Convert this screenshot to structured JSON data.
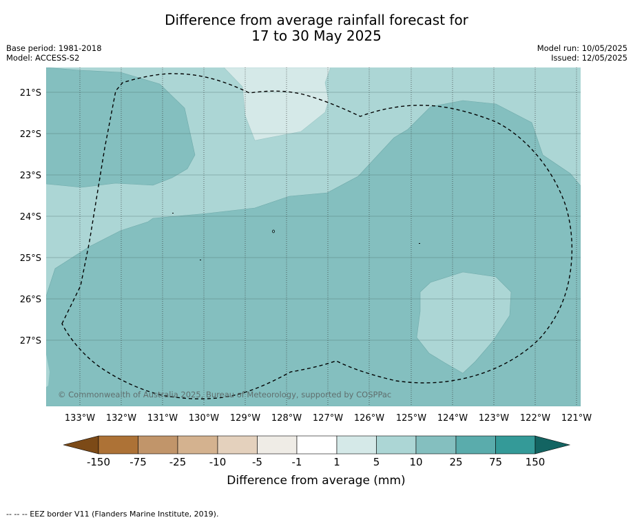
{
  "title": {
    "line1": "Difference from average rainfall forecast for",
    "line2": "17 to 30 May 2025"
  },
  "info": {
    "base_period": "Base period: 1981-2018",
    "model": "Model: ACCESS-S2",
    "model_run": "Model run: 10/05/2025",
    "issued": "Issued: 12/05/2025"
  },
  "map": {
    "lat_labels": [
      "21°S",
      "22°S",
      "23°S",
      "24°S",
      "25°S",
      "26°S",
      "27°S"
    ],
    "lon_labels": [
      "133°W",
      "132°W",
      "131°W",
      "130°W",
      "129°W",
      "128°W",
      "127°W",
      "126°W",
      "125°W",
      "124°W",
      "123°W",
      "122°W",
      "121°W"
    ],
    "copyright": "© Commonwealth of Australia 2025, Bureau of Meteorology, supported by COSPPac",
    "fill_colors": {
      "band_1_5": "#d5e9e8",
      "band_5_10": "#acd6d5",
      "band_10_25": "#84bfbf"
    }
  },
  "colorbar": {
    "tick_labels": [
      "-150",
      "-75",
      "-25",
      "-10",
      "-5",
      "-1",
      "1",
      "5",
      "10",
      "25",
      "75",
      "150"
    ],
    "colors": [
      "#7c4a17",
      "#ad7236",
      "#c1956a",
      "#d4b28f",
      "#e4d1bd",
      "#efece6",
      "#ffffff",
      "#d5e9e8",
      "#acd6d5",
      "#84bfbf",
      "#5aacac",
      "#349a98",
      "#136462"
    ],
    "title": "Difference from average (mm)"
  },
  "footer": "--  --  -- EEZ border V11 (Flanders Marine Institute, 2019)."
}
